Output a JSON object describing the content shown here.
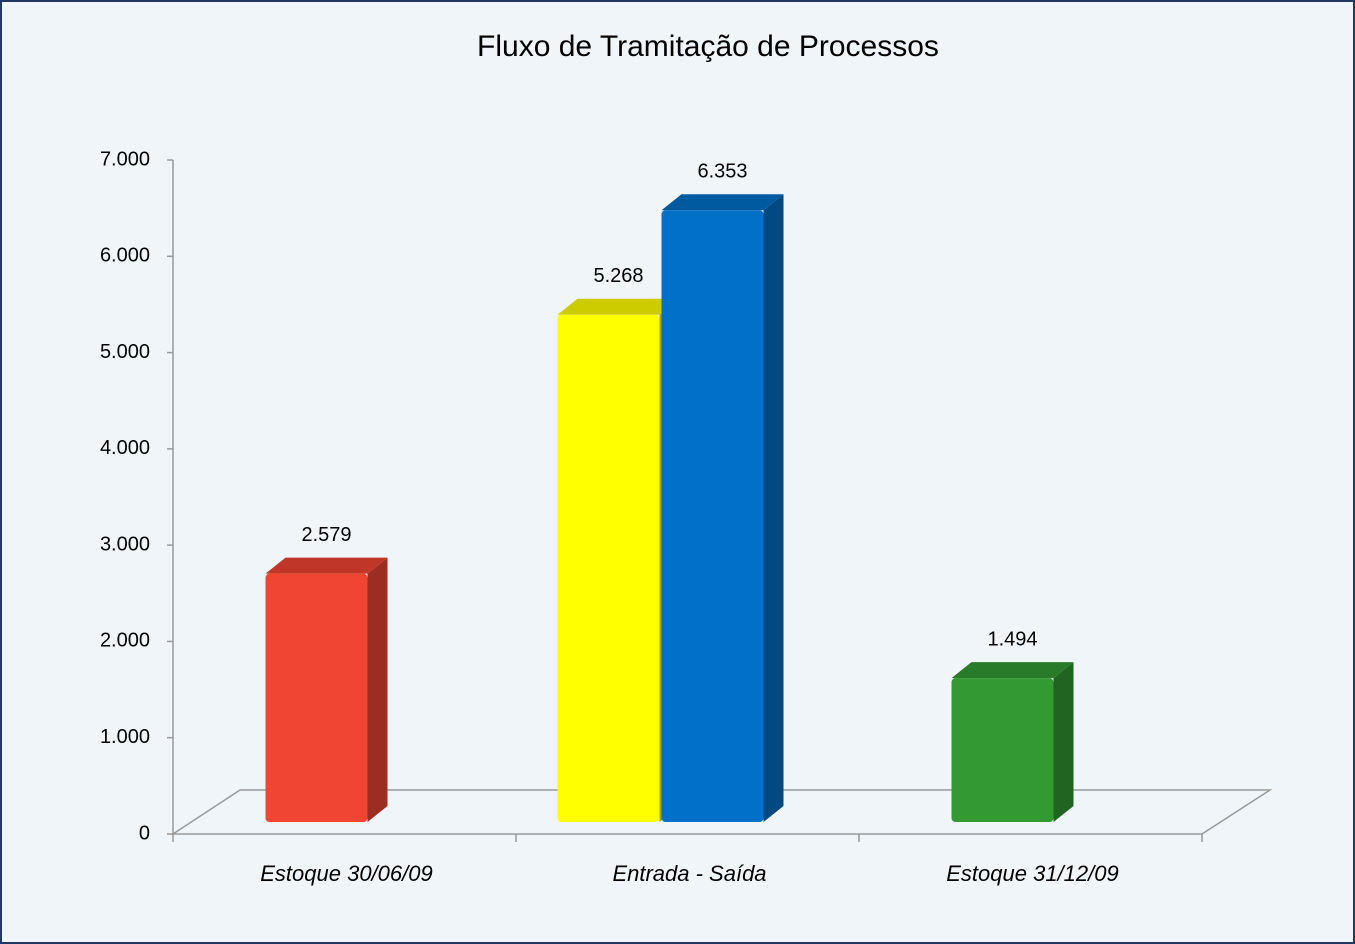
{
  "chart_data": {
    "type": "bar3d",
    "title": "Fluxo de Tramitação de Processos",
    "categories": [
      "Estoque 30/06/09",
      "Entrada - Saída",
      "Estoque 31/12/09"
    ],
    "series": [
      {
        "color": "#f04533",
        "values": [
          2579,
          null,
          null
        ],
        "value_labels": [
          "2.579",
          null,
          null
        ]
      },
      {
        "color": "#ffff00",
        "values": [
          null,
          5268,
          null
        ],
        "value_labels": [
          null,
          "5.268",
          null
        ]
      },
      {
        "color": "#0070c8",
        "values": [
          null,
          6353,
          null
        ],
        "value_labels": [
          null,
          "6.353",
          null
        ]
      },
      {
        "color": "#339933",
        "values": [
          null,
          null,
          1494
        ],
        "value_labels": [
          null,
          null,
          "1.494"
        ]
      }
    ],
    "ylim": [
      0,
      7000
    ],
    "yticks": [
      0,
      {
        "value": 1000,
        "label": "1.000"
      },
      {
        "value": 2000,
        "label": "2.000"
      },
      {
        "value": 3000,
        "label": "3.000"
      },
      {
        "value": 4000,
        "label": "4.000"
      },
      {
        "value": 5000,
        "label": "5.000"
      },
      {
        "value": 6000,
        "label": "6.000"
      },
      {
        "value": 7000,
        "label": "7.000"
      }
    ]
  }
}
